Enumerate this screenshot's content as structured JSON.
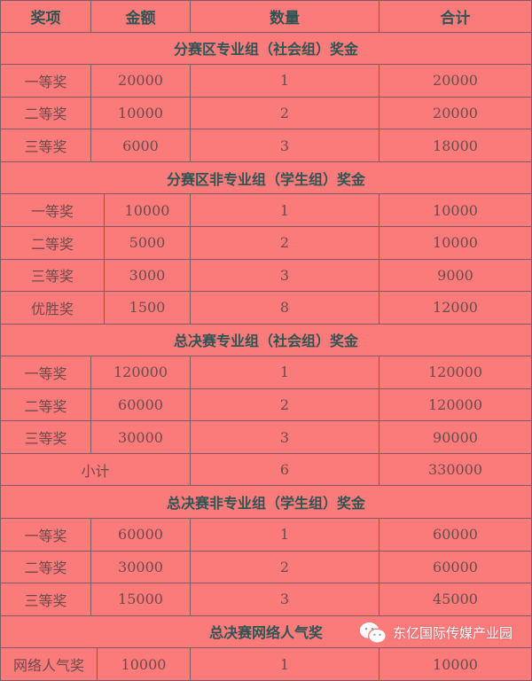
{
  "header": [
    "奖项",
    "金额",
    "数量",
    "合计"
  ],
  "sections": [
    {
      "title": "分赛区专业组（社会组）奖金",
      "rows": [
        [
          "一等奖",
          "20000",
          "1",
          "20000"
        ],
        [
          "二等奖",
          "10000",
          "2",
          "20000"
        ],
        [
          "三等奖",
          "6000",
          "3",
          "18000"
        ]
      ]
    },
    {
      "title": "分赛区非专业组（学生组）奖金",
      "rows": [
        [
          "一等奖",
          "10000",
          "1",
          "10000"
        ],
        [
          "二等奖",
          "5000",
          "2",
          "10000"
        ],
        [
          "三等奖",
          "3000",
          "3",
          "9000"
        ],
        [
          "优胜奖",
          "1500",
          "8",
          "12000"
        ]
      ]
    },
    {
      "title": "总决赛专业组（社会组）奖金",
      "rows": [
        [
          "一等奖",
          "120000",
          "1",
          "120000"
        ],
        [
          "二等奖",
          "60000",
          "2",
          "120000"
        ],
        [
          "三等奖",
          "30000",
          "3",
          "90000"
        ]
      ],
      "subtotal": [
        "小计",
        "6",
        "330000"
      ]
    },
    {
      "title": "总决赛非专业组（学生组）奖金",
      "rows": [
        [
          "一等奖",
          "60000",
          "1",
          "60000"
        ],
        [
          "二等奖",
          "30000",
          "2",
          "60000"
        ],
        [
          "三等奖",
          "15000",
          "3",
          "45000"
        ]
      ]
    },
    {
      "title": "总决赛网络人气奖",
      "rows": [
        [
          "网络人气奖",
          "10000",
          "1",
          "10000"
        ]
      ]
    }
  ],
  "watermark": {
    "icon": "wechat-icon",
    "text": "东亿国际传媒产业园"
  },
  "colors": {
    "background": "#fb7b7b",
    "heading_text": "#2e5553",
    "body_text": "#6e4a4c",
    "border": "#7d5a66"
  }
}
